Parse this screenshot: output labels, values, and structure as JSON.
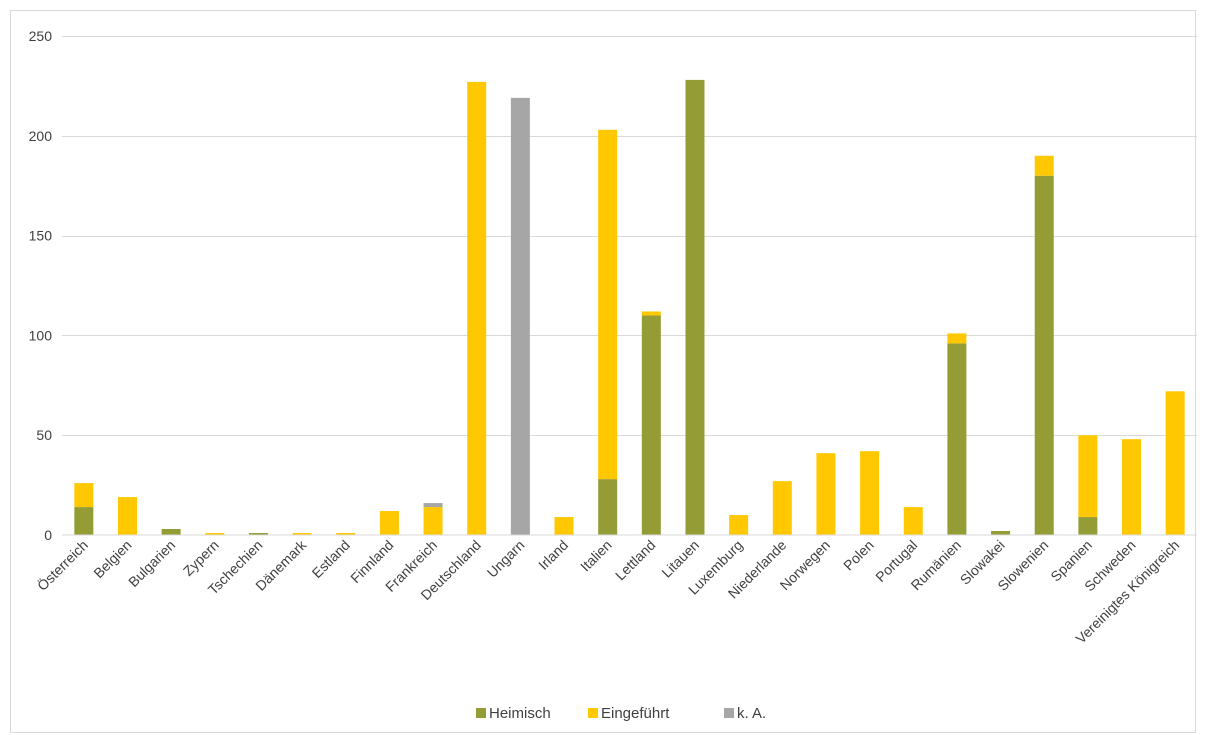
{
  "chart_data": {
    "type": "bar",
    "stacked": true,
    "title": "",
    "xlabel": "",
    "ylabel": "",
    "ylim": [
      0,
      250
    ],
    "yticks": [
      "0",
      "50",
      "100",
      "150",
      "200",
      "250"
    ],
    "grid": true,
    "legend_position": "bottom",
    "categories": [
      "Österreich",
      "Belgien",
      "Bulgarien",
      "Zypern",
      "Tschechien",
      "Dänemark",
      "Estland",
      "Finnland",
      "Frankreich",
      "Deutschland",
      "Ungarn",
      "Irland",
      "Italien",
      "Lettland",
      "Litauen",
      "Luxemburg",
      "Niederlande",
      "Norwegen",
      "Polen",
      "Portugal",
      "Rumänien",
      "Slowakei",
      "Slowenien",
      "Spanien",
      "Schweden",
      "Vereinigtes Königreich"
    ],
    "series": [
      {
        "name": "Heimisch",
        "color": "#949C35",
        "values": [
          14,
          0,
          3,
          0,
          1,
          0,
          0,
          0,
          0,
          0,
          0,
          0,
          28,
          110,
          228,
          0,
          0,
          0,
          0,
          0,
          96,
          2,
          180,
          9,
          0,
          0
        ]
      },
      {
        "name": "Eingeführt",
        "color": "#FFC800",
        "values": [
          12,
          19,
          0,
          1,
          0,
          1,
          1,
          12,
          14,
          227,
          0,
          9,
          175,
          2,
          0,
          10,
          27,
          41,
          42,
          14,
          5,
          0,
          10,
          41,
          48,
          72
        ]
      },
      {
        "name": "k. A.",
        "color": "#A6A6A6",
        "values": [
          0,
          0,
          0,
          0,
          0,
          0,
          0,
          0,
          2,
          0,
          219,
          0,
          0,
          0,
          0,
          0,
          0,
          0,
          0,
          0,
          0,
          0,
          0,
          0,
          0,
          0
        ]
      }
    ]
  },
  "colors": {
    "grid": "#D9D9D9",
    "border": "#D9D9D9",
    "text": "#404040"
  }
}
